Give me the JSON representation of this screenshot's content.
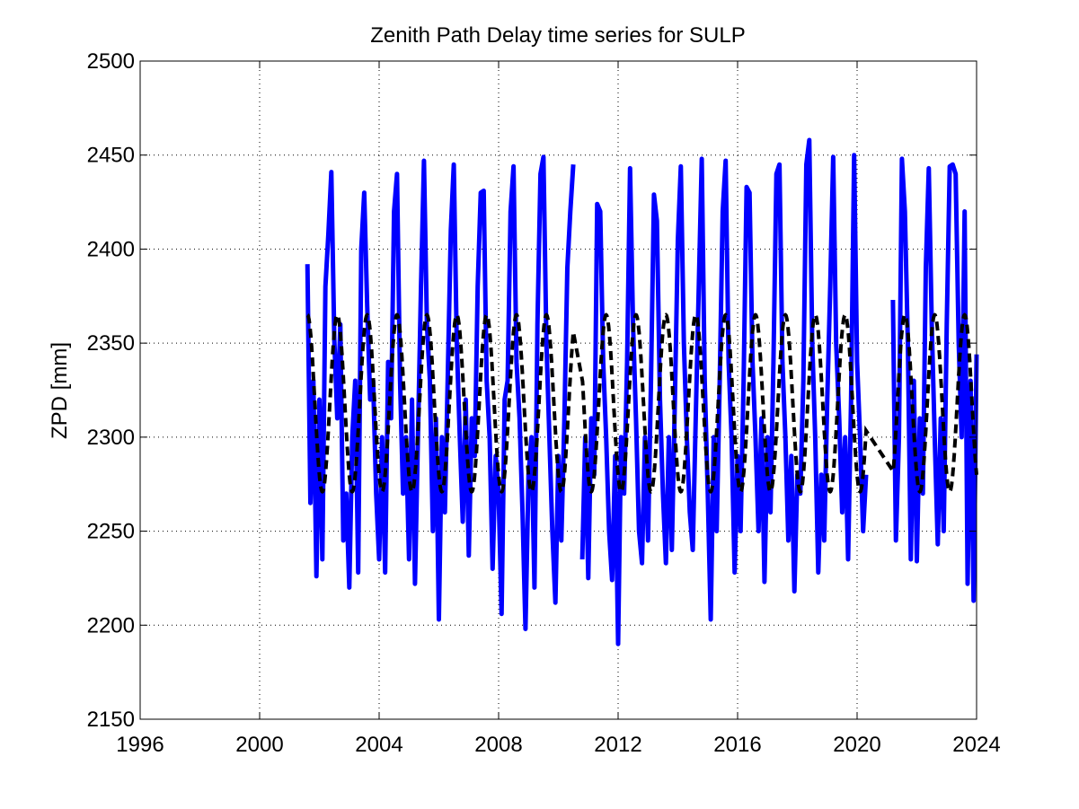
{
  "chart_data": {
    "type": "line",
    "title": "Zenith Path Delay time series for SULP",
    "xlabel": "",
    "ylabel": "ZPD [mm]",
    "xlim": [
      1996,
      2024
    ],
    "ylim": [
      2150,
      2500
    ],
    "xticks": [
      1996,
      2000,
      2004,
      2008,
      2012,
      2016,
      2020,
      2024
    ],
    "yticks": [
      2150,
      2200,
      2250,
      2300,
      2350,
      2400,
      2450,
      2500
    ],
    "grid": true,
    "colors": {
      "observed": "#0000ff",
      "seasonal_fit": "#000000"
    },
    "series": [
      {
        "style": "solid",
        "color": "#0000ff",
        "segments": [
          {
            "x": [
              2001.6,
              2001.7,
              2001.8,
              2001.9,
              2002.0,
              2002.1,
              2002.2,
              2002.3,
              2002.4,
              2002.5,
              2002.6,
              2002.7,
              2002.8,
              2002.9,
              2003.0,
              2003.1,
              2003.2,
              2003.3,
              2003.4,
              2003.5,
              2003.6,
              2003.7,
              2003.8,
              2003.9,
              2004.0,
              2004.1,
              2004.2,
              2004.3,
              2004.4,
              2004.5,
              2004.6,
              2004.7,
              2004.8,
              2004.9,
              2005.0,
              2005.1,
              2005.2,
              2005.3,
              2005.4,
              2005.5,
              2005.6,
              2005.7,
              2005.8,
              2005.9,
              2006.0,
              2006.1,
              2006.2,
              2006.3,
              2006.4,
              2006.5,
              2006.6,
              2006.7,
              2006.8,
              2006.9,
              2007.0,
              2007.1,
              2007.2,
              2007.3,
              2007.4,
              2007.5,
              2007.6,
              2007.7,
              2007.8,
              2007.9,
              2008.0,
              2008.1,
              2008.2,
              2008.3,
              2008.4,
              2008.5,
              2008.6,
              2008.7,
              2008.8,
              2008.9,
              2009.0,
              2009.1,
              2009.2,
              2009.3,
              2009.4,
              2009.5,
              2009.6,
              2009.7,
              2009.8,
              2009.9,
              2010.0,
              2010.1,
              2010.2,
              2010.3,
              2010.4,
              2010.5
            ],
            "y": [
              2392,
              2265,
              2330,
              2226,
              2320,
              2235,
              2380,
              2408,
              2441,
              2352,
              2310,
              2360,
              2245,
              2270,
              2220,
              2300,
              2330,
              2228,
              2400,
              2430,
              2370,
              2320,
              2330,
              2270,
              2235,
              2300,
              2228,
              2340,
              2310,
              2420,
              2440,
              2330,
              2270,
              2300,
              2235,
              2320,
              2222,
              2300,
              2380,
              2447,
              2360,
              2330,
              2250,
              2310,
              2203,
              2300,
              2260,
              2335,
              2410,
              2445,
              2350,
              2300,
              2255,
              2320,
              2237,
              2310,
              2290,
              2380,
              2430,
              2431,
              2330,
              2300,
              2230,
              2290,
              2270,
              2206,
              2320,
              2330,
              2420,
              2444,
              2340,
              2310,
              2260,
              2198,
              2280,
              2300,
              2220,
              2360,
              2440,
              2449,
              2350,
              2300,
              2250,
              2212,
              2290,
              2245,
              2310,
              2390,
              2420,
              2445
            ]
          },
          {
            "x": [
              2010.8,
              2010.9,
              2011.0,
              2011.1,
              2011.2,
              2011.3,
              2011.4,
              2011.5,
              2011.6,
              2011.7,
              2011.8,
              2011.9,
              2012.0,
              2012.1,
              2012.2,
              2012.3,
              2012.4,
              2012.5,
              2012.6,
              2012.7,
              2012.8,
              2012.9,
              2013.0,
              2013.1,
              2013.2,
              2013.3,
              2013.4,
              2013.5,
              2013.6,
              2013.7,
              2013.8,
              2013.9,
              2014.0,
              2014.1,
              2014.2,
              2014.3,
              2014.4,
              2014.5,
              2014.6,
              2014.7,
              2014.8,
              2014.9,
              2015.0,
              2015.1,
              2015.2,
              2015.3,
              2015.4,
              2015.5,
              2015.6,
              2015.7,
              2015.8,
              2015.9,
              2016.0,
              2016.1,
              2016.2,
              2016.3,
              2016.4,
              2016.5,
              2016.6,
              2016.7,
              2016.8,
              2016.9,
              2017.0,
              2017.1,
              2017.2,
              2017.3,
              2017.4,
              2017.5,
              2017.6,
              2017.7,
              2017.8,
              2017.9,
              2018.0,
              2018.1,
              2018.2,
              2018.3,
              2018.4,
              2018.5,
              2018.6,
              2018.7,
              2018.8,
              2018.9,
              2019.0,
              2019.1,
              2019.2,
              2019.3,
              2019.4,
              2019.5,
              2019.6,
              2019.7,
              2019.8,
              2019.9,
              2020.0,
              2020.1,
              2020.2,
              2020.3
            ],
            "y": [
              2235,
              2300,
              2225,
              2310,
              2280,
              2424,
              2420,
              2340,
              2300,
              2250,
              2224,
              2290,
              2190,
              2300,
              2270,
              2340,
              2443,
              2360,
              2310,
              2250,
              2233,
              2300,
              2245,
              2330,
              2429,
              2415,
              2320,
              2270,
              2233,
              2300,
              2240,
              2320,
              2405,
              2444,
              2350,
              2300,
              2260,
              2240,
              2310,
              2380,
              2448,
              2330,
              2270,
              2203,
              2300,
              2250,
              2330,
              2420,
              2447,
              2340,
              2300,
              2228,
              2290,
              2250,
              2330,
              2433,
              2430,
              2340,
              2300,
              2250,
              2310,
              2223,
              2300,
              2260,
              2340,
              2440,
              2445,
              2340,
              2300,
              2245,
              2290,
              2218,
              2280,
              2270,
              2330,
              2445,
              2458,
              2350,
              2300,
              2228,
              2280,
              2245,
              2320,
              2380,
              2449,
              2350,
              2310,
              2260,
              2300,
              2235,
              2320,
              2450,
              2340,
              2300,
              2250,
              2280
            ]
          },
          {
            "x": [
              2021.2,
              2021.3,
              2021.4,
              2021.5,
              2021.6,
              2021.7,
              2021.8,
              2021.9,
              2022.0,
              2022.1,
              2022.2,
              2022.3,
              2022.4,
              2022.5,
              2022.6,
              2022.7,
              2022.8,
              2022.9,
              2023.0,
              2023.1,
              2023.2,
              2023.3,
              2023.4,
              2023.5,
              2023.6,
              2023.7,
              2023.8,
              2023.9,
              2024.0
            ],
            "y": [
              2373,
              2245,
              2300,
              2448,
              2420,
              2350,
              2235,
              2330,
              2234,
              2310,
              2270,
              2390,
              2443,
              2360,
              2300,
              2243,
              2310,
              2250,
              2360,
              2444,
              2445,
              2440,
              2350,
              2300,
              2420,
              2222,
              2330,
              2213,
              2344
            ]
          }
        ]
      },
      {
        "style": "dashed",
        "color": "#000000",
        "model": {
          "mean": 2318,
          "amplitude": 47,
          "peak_phase": 0.6,
          "x_start": 2001.6,
          "x_end": 2024.0
        },
        "gaps": [
          {
            "x_start": 2010.5,
            "x_end": 2010.8
          },
          {
            "x_start": 2020.3,
            "x_end": 2021.2
          }
        ]
      }
    ]
  }
}
